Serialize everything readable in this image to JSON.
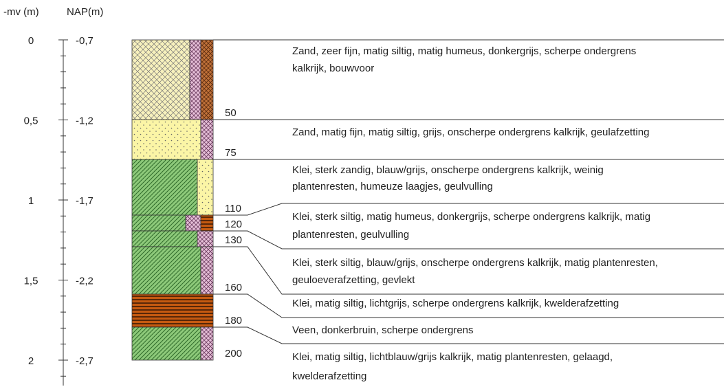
{
  "header": {
    "depth_label": "-mv (m)",
    "nap_label": "NAP(m)"
  },
  "axis": {
    "depth_ticks": [
      "0",
      "0,5",
      "1",
      "1,5",
      "2"
    ],
    "nap_ticks": [
      "-0,7",
      "-1,2",
      "-1,7",
      "-2,2",
      "-2,7"
    ]
  },
  "layers": [
    {
      "depth": "50",
      "description": [
        "Zand, zeer fijn, matig siltig, matig humeus, donkergrijs, scherpe ondergrens",
        "kalkrijk, bouwvoor"
      ]
    },
    {
      "depth": "75",
      "description": [
        "Zand, matig fijn, matig siltig, grijs, onscherpe ondergrens kalkrijk, geulafzetting"
      ]
    },
    {
      "depth": "110",
      "description": [
        "Klei, sterk zandig, blauw/grijs, onscherpe ondergrens kalkrijk, weinig",
        "plantenresten, humeuze laagjes, geulvulling"
      ]
    },
    {
      "depth": "120",
      "description": [
        "Klei, sterk siltig, matig humeus, donkergrijs, scherpe ondergrens kalkrijk, matig",
        "plantenresten, geulvulling"
      ]
    },
    {
      "depth": "130",
      "description": [
        "Klei, sterk siltig, blauw/grijs, onscherpe ondergrens kalkrijk, matig plantenresten,",
        "geuloeverafzetting, gevlekt"
      ]
    },
    {
      "depth": "160",
      "description": [
        "Klei, matig siltig, lichtgrijs, scherpe ondergrens kalkrijk, kwelderafzetting"
      ]
    },
    {
      "depth": "180",
      "description": [
        "Veen,  donkerbruin, scherpe ondergrens"
      ]
    },
    {
      "depth": "200",
      "description": [
        "Klei, matig siltig, lichtblauw/grijs kalkrijk, matig plantenresten, gelaagd,",
        "kwelderafzetting"
      ]
    }
  ]
}
